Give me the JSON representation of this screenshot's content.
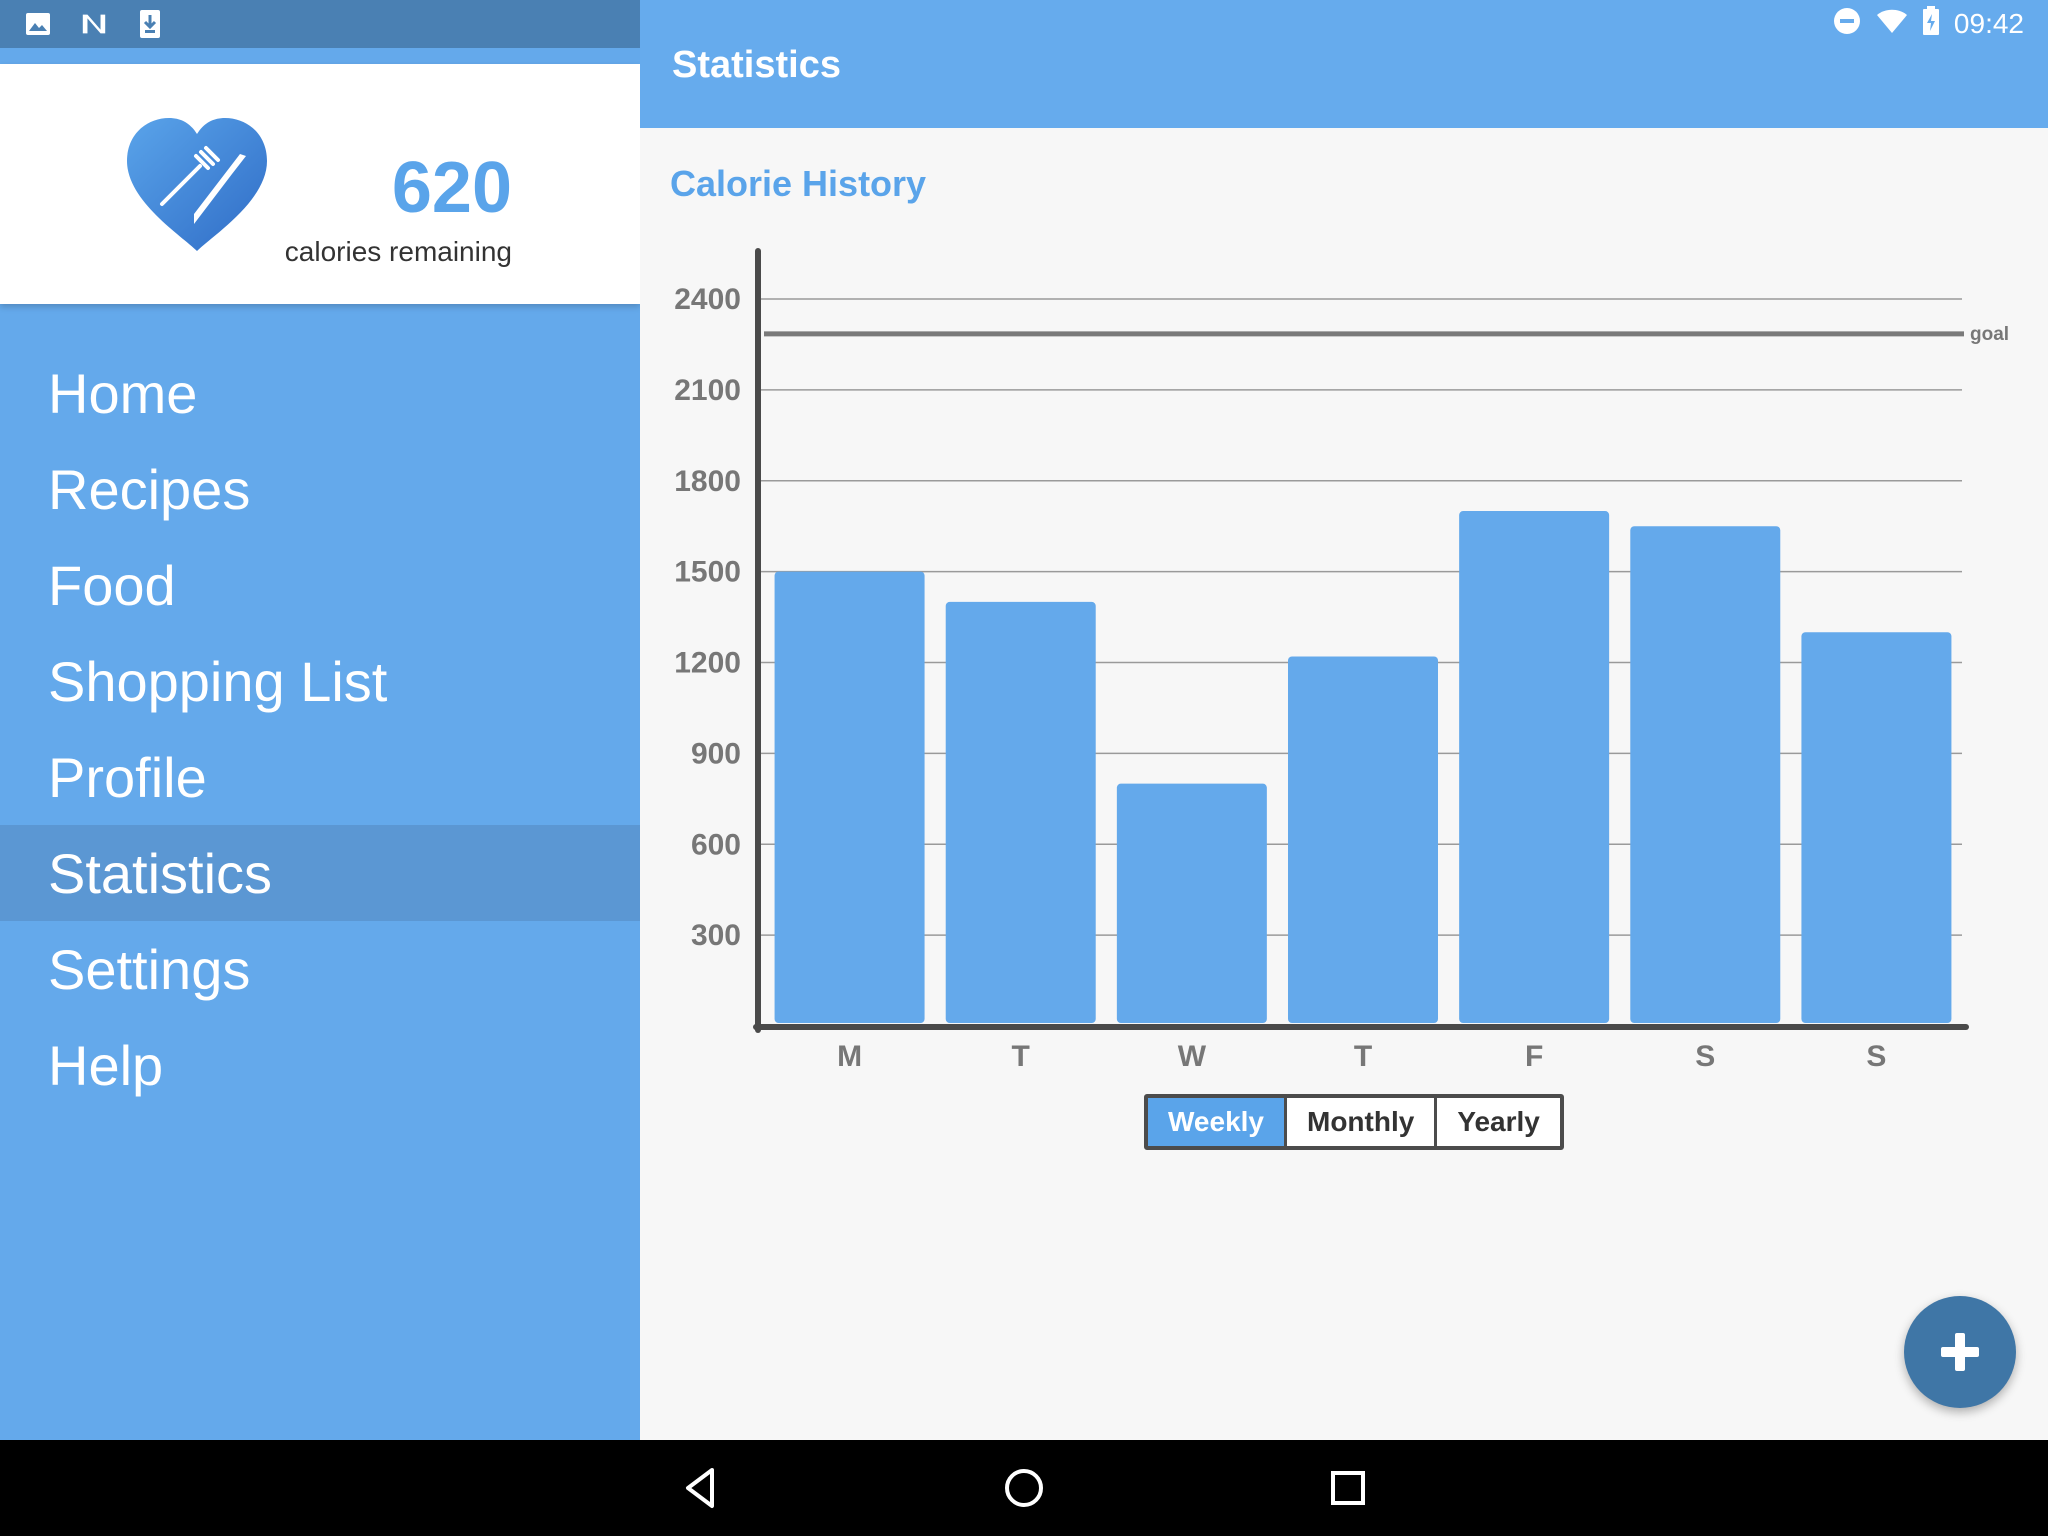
{
  "status_bar": {
    "time": "09:42",
    "left_icons": [
      "image-icon",
      "n-notification-icon",
      "download-icon"
    ],
    "right_icons": [
      "do-not-disturb-icon",
      "wifi-icon",
      "battery-charging-icon"
    ]
  },
  "drawer": {
    "calories_value": "620",
    "calories_label": "calories remaining",
    "logo_icon": "heart-fork-knife-logo",
    "items": [
      {
        "label": "Home"
      },
      {
        "label": "Recipes"
      },
      {
        "label": "Food"
      },
      {
        "label": "Shopping List"
      },
      {
        "label": "Profile"
      },
      {
        "label": "Statistics",
        "active": true
      },
      {
        "label": "Settings"
      },
      {
        "label": "Help"
      }
    ]
  },
  "appbar": {
    "title": "Statistics"
  },
  "section": {
    "title": "Calorie History"
  },
  "chart_data": {
    "type": "bar",
    "categories": [
      "M",
      "T",
      "W",
      "T",
      "F",
      "S",
      "S"
    ],
    "values": [
      1500,
      1400,
      800,
      1220,
      1700,
      1650,
      1300
    ],
    "yticks": [
      300,
      600,
      900,
      1200,
      1500,
      1800,
      2100,
      2400
    ],
    "ylim": [
      0,
      2550
    ],
    "goal": 2285,
    "goal_label": "goal",
    "grid": true,
    "bar_color": "#64a9eb"
  },
  "range_toggle": {
    "options": [
      "Weekly",
      "Monthly",
      "Yearly"
    ],
    "selected": "Weekly"
  },
  "fab": {
    "icon": "plus-icon"
  },
  "nav_bar": {
    "icons": [
      "back-icon",
      "home-icon",
      "recents-icon"
    ]
  },
  "colors": {
    "accent": "#5aa4ea",
    "appbar": "#66abed",
    "drawer": "#64a9eb",
    "drawer_active": "#5b97d3",
    "fab": "#3f76a6"
  }
}
